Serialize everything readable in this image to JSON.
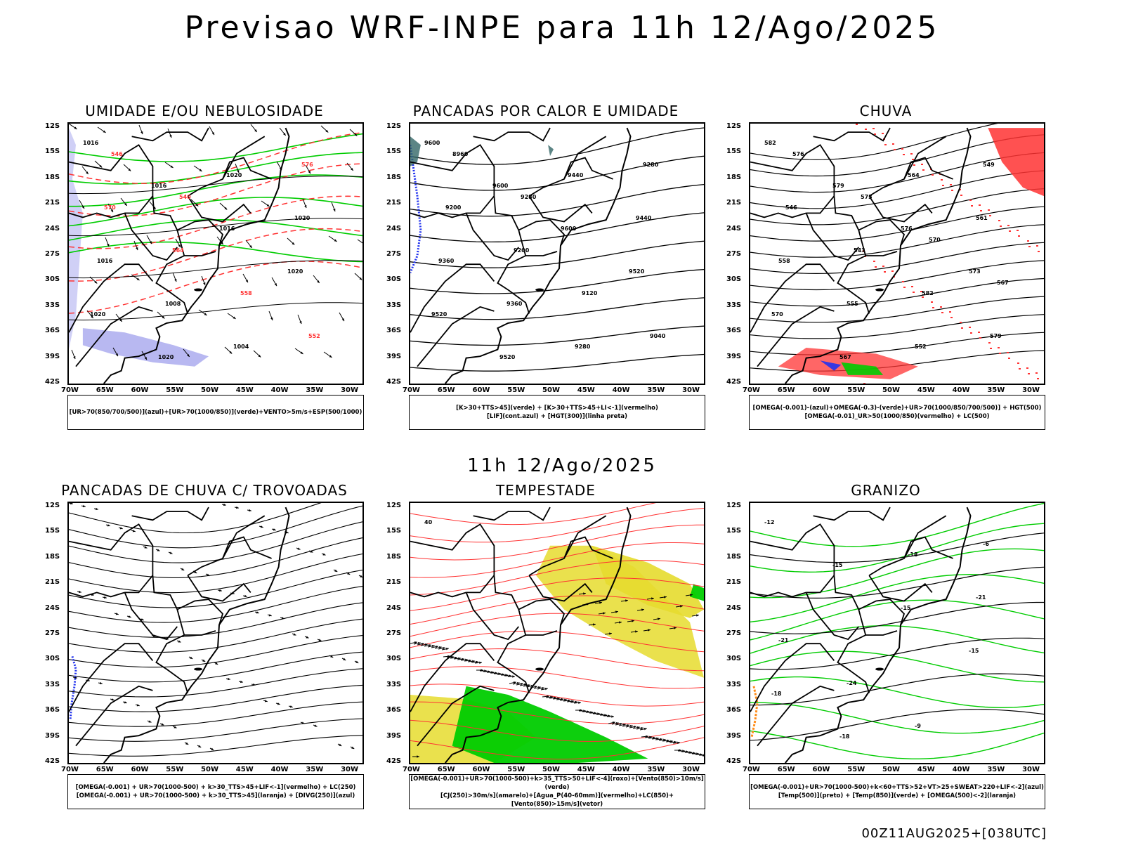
{
  "header": {
    "title": "Previsao WRF-INPE  para 11h 12/Ago/2025"
  },
  "mid_label": "11h 12/Ago/2025",
  "footer": "00Z11AUG2025+[038UTC]",
  "axes": {
    "lat_labels": [
      "12S",
      "15S",
      "18S",
      "21S",
      "24S",
      "27S",
      "30S",
      "33S",
      "36S",
      "39S",
      "42S"
    ],
    "lon_labels": [
      "70W",
      "65W",
      "60W",
      "55W",
      "50W",
      "45W",
      "40W",
      "35W",
      "30W"
    ]
  },
  "colors": {
    "green": "#00cc00",
    "red": "#ff3333",
    "blue": "#2233ee",
    "yellow": "#e6dc2e",
    "lavender": "#b0b0f0",
    "orange": "#ff8c1a"
  },
  "panels": [
    {
      "title": "UMIDADE E/OU NEBULOSIDADE",
      "legend": [
        "[UR>70(850/700/500)](azul)+[UR>70(1000/850)](verde)+VENTO>5m/s+ESP(500/1000)"
      ],
      "contour_labels": [
        "1016",
        "1016",
        "1016",
        "1020",
        "1020",
        "1020",
        "1020",
        "1020",
        "1016",
        "1008",
        "1004",
        "576",
        "570",
        "564",
        "558",
        "552",
        "546",
        "540"
      ]
    },
    {
      "title": "PANCADAS POR CALOR E UMIDADE",
      "legend": [
        "[K>30+TTS>45](verde) + [K>30+TTS>45+LI<-1](vermelho)",
        "[LIF](cont.azul) + [HGT(300)](linha preta)"
      ],
      "contour_labels": [
        "9600",
        "9600",
        "9600",
        "9520",
        "9520",
        "9520",
        "9440",
        "9440",
        "9360",
        "9360",
        "9280",
        "9280",
        "9200",
        "9200",
        "9120",
        "9040",
        "8960",
        "9280"
      ]
    },
    {
      "title": "CHUVA",
      "legend": [
        "[OMEGA(-0.001)-(azul)+OMEGA(-0.3)-(verde)+UR>70(1000/850/700/500)] + HGT(500)",
        "[OMEGA(-0.01)_UR>50(1000/850)(vermelho) + LC(500)"
      ],
      "contour_labels": [
        "582",
        "579",
        "576",
        "573",
        "570",
        "567",
        "564",
        "561",
        "558",
        "555",
        "552",
        "549",
        "546",
        "543",
        "582",
        "579",
        "576",
        "573",
        "570",
        "567"
      ]
    },
    {
      "title": "PANCADAS DE CHUVA C/ TROVOADAS",
      "legend": [
        "[OMEGA(-0.001) + UR>70(1000-500) + k>30_TTS>45+LIF<-1](vermelho) + LC(250)",
        "[OMEGA(-0.001) + UR>70(1000-500) + k>30_TTS>45](laranja) + [DIVG(250)](azul)"
      ],
      "contour_labels": []
    },
    {
      "title": "TEMPESTADE",
      "legend": [
        "[OMEGA(-0.001)+UR>70(1000-500)+k>35_TTS>50+LIF<-4](roxo)+[Vento(850)>10m/s](verde)",
        "[CJ(250)>30m/s](amarelo)+[Agua_P(40-60mm)](vermelho)+LC(850)+[Vento(850)>15m/s](vetor)"
      ],
      "contour_labels": [
        "40"
      ]
    },
    {
      "title": "GRANIZO",
      "legend": [
        "[OMEGA(-0.001)+UR>70(1000-500)+k<60+TTS>52+VT>25+SWEAT>220+LIF<-2](azul)",
        "[Temp(500)](preto) + [Temp(850)](verde) + [OMEGA(500)<-2](laranja)"
      ],
      "contour_labels": [
        "-12",
        "-15",
        "-15",
        "-15",
        "-18",
        "-18",
        "-18",
        "-21",
        "-21",
        "-24",
        "-9",
        "-6"
      ]
    }
  ]
}
